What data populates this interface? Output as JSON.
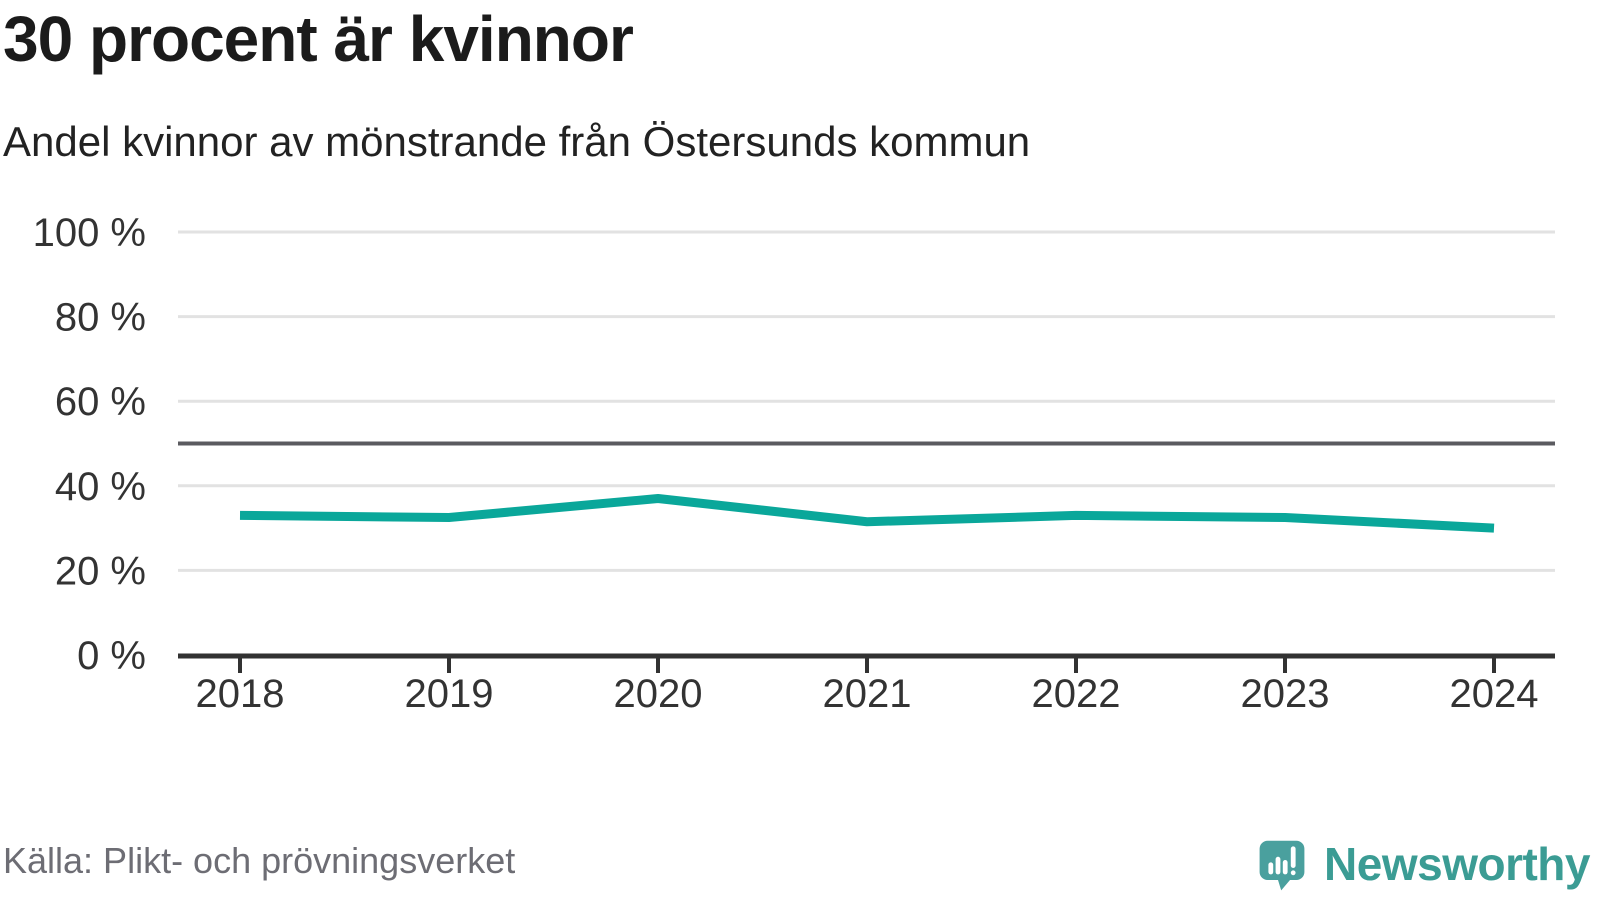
{
  "header": {
    "title": "30 procent är kvinnor",
    "subtitle": "Andel kvinnor av mönstrande från Östersunds kommun"
  },
  "footer": {
    "source": "Källa: Plikt- och prövningsverket",
    "brand_name": "Newsworthy"
  },
  "theme": {
    "accent": "#0aa79a",
    "grid": "#e2e2e2",
    "reference": "#5b5b60",
    "axis": "#323232",
    "tick_label": "#333333",
    "brand_teal": "#3b9c94",
    "brand_icon_teal": "#4aa09e"
  },
  "chart_data": {
    "type": "line",
    "title": "30 procent är kvinnor",
    "subtitle": "Andel kvinnor av mönstrande från Östersunds kommun",
    "x": [
      2018,
      2019,
      2020,
      2021,
      2022,
      2023,
      2024
    ],
    "series": [
      {
        "name": "Andel kvinnor av mönstrande",
        "values": [
          33,
          32.5,
          37,
          31.5,
          33,
          32.5,
          30
        ],
        "color": "#0aa79a"
      }
    ],
    "unit": "%",
    "xlabel": "",
    "ylabel": "",
    "ylim": [
      0,
      100
    ],
    "yticks": [
      0,
      20,
      40,
      60,
      80,
      100
    ],
    "ytick_suffix": " %",
    "reference_line": {
      "value": 50
    },
    "grid": true,
    "legend_position": "none",
    "source": "Källa: Plikt- och prövningsverket"
  }
}
